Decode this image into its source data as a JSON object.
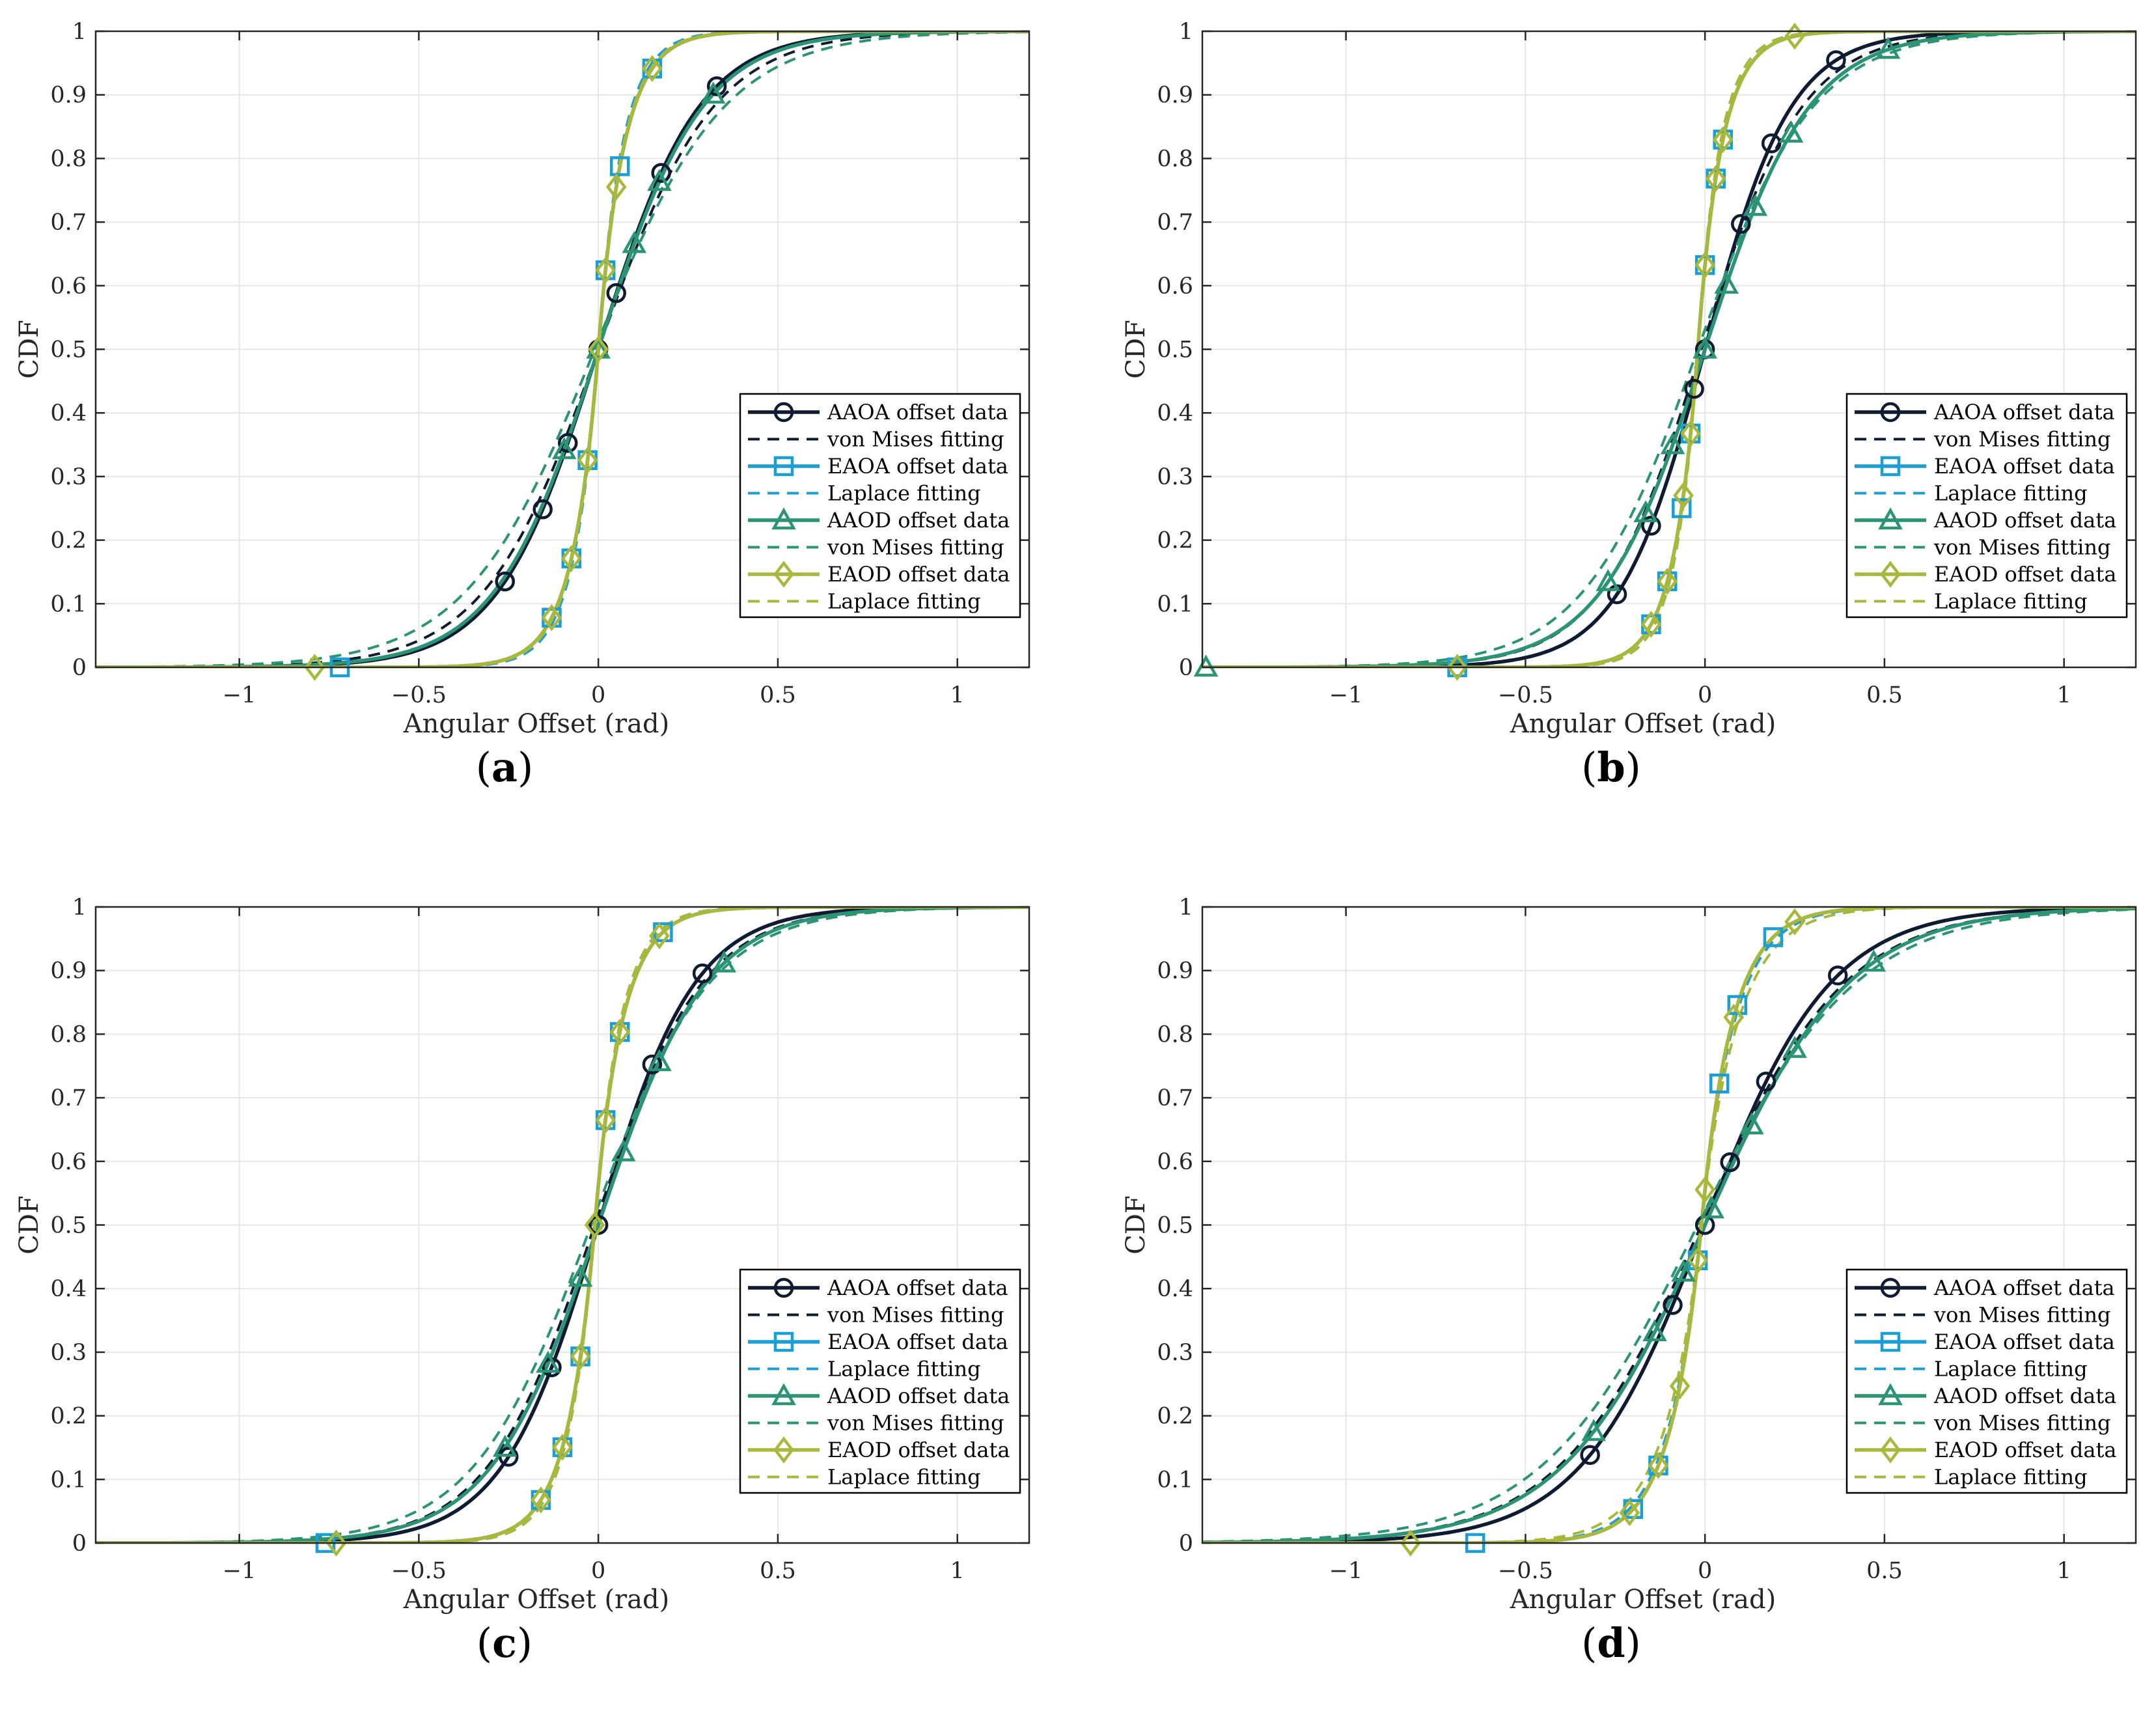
{
  "colors": {
    "aaoa": "#0f1a33",
    "eaoa": "#1a9ed6",
    "aaod": "#2a9474",
    "eaod": "#a9b83a",
    "grid": "#e6e6e6",
    "axis": "#262626"
  },
  "chart_data": [
    {
      "panel_label": "a",
      "type": "line",
      "xlabel": "Angular Offset (rad)",
      "ylabel": "CDF",
      "xlim": [
        -1.4,
        1.2
      ],
      "ylim": [
        0,
        1
      ],
      "xticks": [
        -1,
        -0.5,
        0,
        0.5,
        1
      ],
      "xtick_labels": [
        "−1",
        "−0.5",
        "0",
        "0.5",
        "1"
      ],
      "yticks": [
        0,
        0.1,
        0.2,
        0.3,
        0.4,
        0.5,
        0.6,
        0.7,
        0.8,
        0.9,
        1
      ],
      "ytick_labels": [
        "0",
        "0.1",
        "0.2",
        "0.3",
        "0.4",
        "0.5",
        "0.6",
        "0.7",
        "0.8",
        "0.9",
        "1"
      ],
      "grid": true,
      "legend_position": "lower-right",
      "series": [
        {
          "name": "AAOA offset data",
          "color_key": "aaoa",
          "dash": "solid",
          "marker": "circle",
          "dist": "vonmises",
          "loc": 0.0,
          "scale": 0.14,
          "markers_x": [
            -0.26,
            -0.155,
            -0.085,
            0.0,
            0.05,
            0.175,
            0.33
          ]
        },
        {
          "name": "von Mises fitting",
          "color_key": "aaoa",
          "dash": "dashed",
          "marker": "none",
          "dist": "vonmises",
          "loc": 0.0,
          "scale": 0.16
        },
        {
          "name": "EAOA offset data",
          "color_key": "eaoa",
          "dash": "solid",
          "marker": "square",
          "dist": "laplace",
          "loc": 0.0,
          "scale": 0.07,
          "markers_x": [
            -0.72,
            -0.13,
            -0.075,
            -0.03,
            0.02,
            0.06,
            0.15
          ],
          "first_marker_y": 0
        },
        {
          "name": "Laplace fitting",
          "color_key": "eaoa",
          "dash": "dashed",
          "marker": "none",
          "dist": "laplace",
          "loc": 0.0,
          "scale": 0.065
        },
        {
          "name": "AAOD offset data",
          "color_key": "aaod",
          "dash": "solid",
          "marker": "triangle",
          "dist": "vonmises",
          "loc": 0.0,
          "scale": 0.145,
          "markers_x": [
            -0.095,
            0.0,
            0.1,
            0.17,
            0.32
          ]
        },
        {
          "name": "von Mises fitting",
          "color_key": "aaod",
          "dash": "dashed",
          "marker": "none",
          "dist": "vonmises",
          "loc": -0.01,
          "scale": 0.18
        },
        {
          "name": "EAOD offset data",
          "color_key": "eaod",
          "dash": "solid",
          "marker": "diamond",
          "dist": "laplace",
          "loc": 0.0,
          "scale": 0.07,
          "markers_x": [
            -0.79,
            -0.13,
            -0.075,
            -0.03,
            0.0,
            0.02,
            0.05,
            0.15
          ],
          "first_marker_y": 0
        },
        {
          "name": "Laplace fitting",
          "color_key": "eaod",
          "dash": "dashed",
          "marker": "none",
          "dist": "laplace",
          "loc": 0.0,
          "scale": 0.068
        }
      ]
    },
    {
      "panel_label": "b",
      "type": "line",
      "xlabel": "Angular Offset (rad)",
      "ylabel": "CDF",
      "xlim": [
        -1.4,
        1.2
      ],
      "ylim": [
        0,
        1
      ],
      "xticks": [
        -1,
        -0.5,
        0,
        0.5,
        1
      ],
      "xtick_labels": [
        "−1",
        "−0.5",
        "0",
        "0.5",
        "1"
      ],
      "yticks": [
        0,
        0.1,
        0.2,
        0.3,
        0.4,
        0.5,
        0.6,
        0.7,
        0.8,
        0.9,
        1
      ],
      "ytick_labels": [
        "0",
        "0.1",
        "0.2",
        "0.3",
        "0.4",
        "0.5",
        "0.6",
        "0.7",
        "0.8",
        "0.9",
        "1"
      ],
      "grid": true,
      "legend_position": "lower-right",
      "series": [
        {
          "name": "AAOA offset data",
          "color_key": "aaoa",
          "dash": "solid",
          "marker": "circle",
          "dist": "vonmises",
          "loc": 0.0,
          "scale": 0.12,
          "markers_x": [
            -0.245,
            -0.15,
            -0.03,
            0.0,
            0.1,
            0.185,
            0.365
          ]
        },
        {
          "name": "von Mises fitting",
          "color_key": "aaoa",
          "dash": "dashed",
          "marker": "none",
          "dist": "vonmises",
          "loc": -0.01,
          "scale": 0.14
        },
        {
          "name": "EAOA offset data",
          "color_key": "eaoa",
          "dash": "solid",
          "marker": "square",
          "dist": "laplace",
          "loc": -0.02,
          "scale": 0.065,
          "markers_x": [
            -0.69,
            -0.15,
            -0.105,
            -0.065,
            -0.04,
            0.0,
            0.03,
            0.05
          ],
          "first_marker_y": 0
        },
        {
          "name": "Laplace fitting",
          "color_key": "eaoa",
          "dash": "dashed",
          "marker": "none",
          "dist": "laplace",
          "loc": -0.02,
          "scale": 0.06
        },
        {
          "name": "AAOD offset data",
          "color_key": "aaod",
          "dash": "solid",
          "marker": "triangle",
          "dist": "vonmises",
          "loc": 0.0,
          "scale": 0.145,
          "markers_x": [
            -1.39,
            -0.27,
            -0.165,
            -0.09,
            0.0,
            0.06,
            0.14,
            0.24,
            0.51
          ],
          "first_marker_y": 0
        },
        {
          "name": "von Mises fitting",
          "color_key": "aaod",
          "dash": "dashed",
          "marker": "none",
          "dist": "vonmises",
          "loc": -0.02,
          "scale": 0.16
        },
        {
          "name": "EAOD offset data",
          "color_key": "eaod",
          "dash": "solid",
          "marker": "diamond",
          "dist": "laplace",
          "loc": -0.02,
          "scale": 0.065,
          "markers_x": [
            -0.69,
            -0.15,
            -0.105,
            -0.06,
            -0.04,
            0.0,
            0.03,
            0.05,
            0.25
          ],
          "first_marker_y": 0
        },
        {
          "name": "Laplace fitting",
          "color_key": "eaod",
          "dash": "dashed",
          "marker": "none",
          "dist": "laplace",
          "loc": -0.02,
          "scale": 0.06
        }
      ]
    },
    {
      "panel_label": "c",
      "type": "line",
      "xlabel": "Angular Offset (rad)",
      "ylabel": "CDF",
      "xlim": [
        -1.4,
        1.2
      ],
      "ylim": [
        0,
        1
      ],
      "xticks": [
        -1,
        -0.5,
        0,
        0.5,
        1
      ],
      "xtick_labels": [
        "−1",
        "−0.5",
        "0",
        "0.5",
        "1"
      ],
      "yticks": [
        0,
        0.1,
        0.2,
        0.3,
        0.4,
        0.5,
        0.6,
        0.7,
        0.8,
        0.9,
        1
      ],
      "ytick_labels": [
        "0",
        "0.1",
        "0.2",
        "0.3",
        "0.4",
        "0.5",
        "0.6",
        "0.7",
        "0.8",
        "0.9",
        "1"
      ],
      "grid": true,
      "legend_position": "lower-right",
      "series": [
        {
          "name": "AAOA offset data",
          "color_key": "aaoa",
          "dash": "solid",
          "marker": "circle",
          "dist": "vonmises",
          "loc": 0.0,
          "scale": 0.135,
          "markers_x": [
            -0.25,
            -0.13,
            0.0,
            0.15,
            0.29
          ]
        },
        {
          "name": "von Mises fitting",
          "color_key": "aaoa",
          "dash": "dashed",
          "marker": "none",
          "dist": "vonmises",
          "loc": -0.01,
          "scale": 0.15
        },
        {
          "name": "EAOA offset data",
          "color_key": "eaoa",
          "dash": "solid",
          "marker": "square",
          "dist": "laplace",
          "loc": -0.01,
          "scale": 0.075,
          "markers_x": [
            -0.76,
            -0.16,
            -0.1,
            -0.05,
            0.02,
            0.06,
            0.18
          ],
          "first_marker_y": 0
        },
        {
          "name": "Laplace fitting",
          "color_key": "eaoa",
          "dash": "dashed",
          "marker": "none",
          "dist": "laplace",
          "loc": -0.01,
          "scale": 0.07
        },
        {
          "name": "AAOD offset data",
          "color_key": "aaod",
          "dash": "solid",
          "marker": "triangle",
          "dist": "vonmises",
          "loc": 0.0,
          "scale": 0.15,
          "markers_x": [
            -0.26,
            -0.14,
            -0.05,
            0.07,
            0.17,
            0.35
          ]
        },
        {
          "name": "von Mises fitting",
          "color_key": "aaod",
          "dash": "dashed",
          "marker": "none",
          "dist": "vonmises",
          "loc": -0.02,
          "scale": 0.165
        },
        {
          "name": "EAOD offset data",
          "color_key": "eaod",
          "dash": "solid",
          "marker": "diamond",
          "dist": "laplace",
          "loc": -0.01,
          "scale": 0.075,
          "markers_x": [
            -0.73,
            -0.16,
            -0.1,
            -0.05,
            -0.01,
            0.02,
            0.06,
            0.17
          ],
          "first_marker_y": 0
        },
        {
          "name": "Laplace fitting",
          "color_key": "eaod",
          "dash": "dashed",
          "marker": "none",
          "dist": "laplace",
          "loc": -0.01,
          "scale": 0.07
        }
      ]
    },
    {
      "panel_label": "d",
      "type": "line",
      "xlabel": "Angular Offset (rad)",
      "ylabel": "CDF",
      "xlim": [
        -1.4,
        1.2
      ],
      "ylim": [
        0,
        1
      ],
      "xticks": [
        -1,
        -0.5,
        0,
        0.5,
        1
      ],
      "xtick_labels": [
        "−1",
        "−0.5",
        "0",
        "0.5",
        "1"
      ],
      "yticks": [
        0,
        0.1,
        0.2,
        0.3,
        0.4,
        0.5,
        0.6,
        0.7,
        0.8,
        0.9,
        1
      ],
      "ytick_labels": [
        "0",
        "0.1",
        "0.2",
        "0.3",
        "0.4",
        "0.5",
        "0.6",
        "0.7",
        "0.8",
        "0.9",
        "1"
      ],
      "grid": true,
      "legend_position": "lower-right",
      "series": [
        {
          "name": "AAOA offset data",
          "color_key": "aaoa",
          "dash": "solid",
          "marker": "circle",
          "dist": "vonmises",
          "loc": 0.0,
          "scale": 0.175,
          "markers_x": [
            -0.32,
            -0.09,
            0.0,
            0.07,
            0.17,
            0.37
          ]
        },
        {
          "name": "von Mises fitting",
          "color_key": "aaoa",
          "dash": "dashed",
          "marker": "none",
          "dist": "vonmises",
          "loc": -0.01,
          "scale": 0.2
        },
        {
          "name": "EAOA offset data",
          "color_key": "eaoa",
          "dash": "solid",
          "marker": "square",
          "dist": "laplace",
          "loc": -0.01,
          "scale": 0.085,
          "markers_x": [
            -0.64,
            -0.2,
            -0.13,
            -0.02,
            0.04,
            0.09,
            0.19
          ],
          "first_marker_y": 0
        },
        {
          "name": "Laplace fitting",
          "color_key": "eaoa",
          "dash": "dashed",
          "marker": "none",
          "dist": "laplace",
          "loc": -0.01,
          "scale": 0.09
        },
        {
          "name": "AAOD offset data",
          "color_key": "aaod",
          "dash": "solid",
          "marker": "triangle",
          "dist": "vonmises",
          "loc": 0.0,
          "scale": 0.2,
          "markers_x": [
            -0.31,
            -0.14,
            -0.06,
            0.02,
            0.13,
            0.25,
            0.47
          ]
        },
        {
          "name": "von Mises fitting",
          "color_key": "aaod",
          "dash": "dashed",
          "marker": "none",
          "dist": "vonmises",
          "loc": -0.02,
          "scale": 0.22
        },
        {
          "name": "EAOD offset data",
          "color_key": "eaod",
          "dash": "solid",
          "marker": "diamond",
          "dist": "laplace",
          "loc": -0.01,
          "scale": 0.085,
          "markers_x": [
            -0.82,
            -0.21,
            -0.13,
            -0.07,
            -0.02,
            0.0,
            0.08,
            0.25
          ],
          "first_marker_y": 0
        },
        {
          "name": "Laplace fitting",
          "color_key": "eaod",
          "dash": "dashed",
          "marker": "none",
          "dist": "laplace",
          "loc": -0.01,
          "scale": 0.1
        }
      ]
    }
  ]
}
